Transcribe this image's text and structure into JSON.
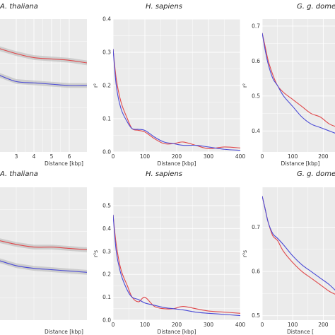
{
  "figure": {
    "panel_background": "#ebebeb",
    "grid_color": "#ffffff",
    "colors": {
      "red": "#e0484b",
      "blue": "#4b4bd6",
      "band": "#b4b4b4"
    }
  },
  "chart_data": [
    {
      "type": "line",
      "title": "A. thaliana",
      "xlabel": "Distance [kbp]",
      "ylabel": "",
      "xlim": [
        2,
        7
      ],
      "ylim": [
        0,
        1
      ],
      "xticks": [
        3,
        4,
        5,
        6
      ],
      "yticks": [],
      "grid": true,
      "series": [
        {
          "color": "red",
          "band": true,
          "x": [
            2,
            3,
            4,
            5,
            6,
            7
          ],
          "y": [
            0.78,
            0.74,
            0.71,
            0.7,
            0.69,
            0.67
          ]
        },
        {
          "color": "blue",
          "band": true,
          "x": [
            2,
            3,
            4,
            5,
            6,
            7
          ],
          "y": [
            0.58,
            0.53,
            0.52,
            0.51,
            0.5,
            0.5
          ]
        }
      ]
    },
    {
      "type": "line",
      "title": "H. sapiens",
      "xlabel": "Distance [kbp]",
      "ylabel": "r²",
      "xlim": [
        0,
        400
      ],
      "ylim": [
        0,
        0.4
      ],
      "xticks": [
        0,
        100,
        200,
        300,
        400
      ],
      "yticks": [
        0.0,
        0.1,
        0.2,
        0.3,
        0.4
      ],
      "grid": true,
      "series": [
        {
          "color": "red",
          "x": [
            0,
            10,
            25,
            45,
            60,
            80,
            100,
            130,
            160,
            190,
            220,
            260,
            300,
            350,
            400
          ],
          "y": [
            0.31,
            0.22,
            0.15,
            0.1,
            0.07,
            0.065,
            0.06,
            0.04,
            0.025,
            0.025,
            0.03,
            0.02,
            0.01,
            0.015,
            0.012
          ]
        },
        {
          "color": "blue",
          "x": [
            0,
            10,
            25,
            45,
            60,
            80,
            100,
            130,
            160,
            190,
            220,
            260,
            300,
            350,
            400
          ],
          "y": [
            0.31,
            0.2,
            0.13,
            0.09,
            0.07,
            0.068,
            0.065,
            0.045,
            0.03,
            0.025,
            0.02,
            0.02,
            0.015,
            0.008,
            0.005
          ]
        }
      ]
    },
    {
      "type": "line",
      "title": "G. g. dome",
      "xlabel": "Distance [kbp]",
      "ylabel": "r²",
      "xlim": [
        0,
        250
      ],
      "ylim": [
        0.34,
        0.72
      ],
      "xticks": [
        0,
        100,
        200
      ],
      "yticks": [
        0.4,
        0.5,
        0.6,
        0.7
      ],
      "grid": true,
      "series": [
        {
          "color": "red",
          "x": [
            0,
            10,
            20,
            35,
            50,
            70,
            100,
            130,
            160,
            190,
            220,
            250
          ],
          "y": [
            0.68,
            0.64,
            0.6,
            0.56,
            0.53,
            0.51,
            0.49,
            0.47,
            0.45,
            0.44,
            0.42,
            0.41
          ]
        },
        {
          "color": "blue",
          "x": [
            0,
            10,
            20,
            35,
            50,
            70,
            100,
            130,
            160,
            190,
            220,
            250
          ],
          "y": [
            0.68,
            0.63,
            0.59,
            0.55,
            0.53,
            0.5,
            0.47,
            0.44,
            0.42,
            0.41,
            0.4,
            0.39
          ]
        }
      ]
    },
    {
      "type": "line",
      "title": "A. thaliana",
      "xlabel": "Distance [kbp]",
      "ylabel": "",
      "xlim": [
        2,
        7
      ],
      "ylim": [
        0,
        1
      ],
      "xticks": [],
      "yticks": [],
      "grid": true,
      "series": [
        {
          "color": "red",
          "band": true,
          "x": [
            2,
            3,
            4,
            5,
            6,
            7
          ],
          "y": [
            0.6,
            0.57,
            0.55,
            0.55,
            0.54,
            0.53
          ]
        },
        {
          "color": "blue",
          "band": true,
          "x": [
            2,
            3,
            4,
            5,
            6,
            7
          ],
          "y": [
            0.45,
            0.41,
            0.39,
            0.38,
            0.37,
            0.36
          ]
        }
      ]
    },
    {
      "type": "line",
      "title": "H. sapiens",
      "xlabel": "Distance [kbp]",
      "ylabel": "r²s",
      "xlim": [
        0,
        400
      ],
      "ylim": [
        0,
        0.58
      ],
      "xticks": [
        0,
        100,
        200,
        300,
        400
      ],
      "yticks": [
        0.0,
        0.1,
        0.2,
        0.3,
        0.4,
        0.5
      ],
      "grid": true,
      "series": [
        {
          "color": "red",
          "x": [
            0,
            10,
            25,
            45,
            60,
            80,
            100,
            130,
            160,
            190,
            220,
            260,
            300,
            350,
            400
          ],
          "y": [
            0.46,
            0.33,
            0.22,
            0.15,
            0.1,
            0.08,
            0.1,
            0.06,
            0.05,
            0.05,
            0.06,
            0.05,
            0.04,
            0.035,
            0.03
          ]
        },
        {
          "color": "blue",
          "x": [
            0,
            10,
            25,
            45,
            60,
            80,
            100,
            130,
            160,
            190,
            220,
            260,
            300,
            350,
            400
          ],
          "y": [
            0.46,
            0.3,
            0.2,
            0.13,
            0.1,
            0.09,
            0.075,
            0.065,
            0.055,
            0.05,
            0.045,
            0.035,
            0.03,
            0.025,
            0.02
          ]
        }
      ]
    },
    {
      "type": "line",
      "title": "G. g. dome",
      "xlabel": "Distance [",
      "ylabel": "r²s",
      "xlim": [
        0,
        250
      ],
      "ylim": [
        0.49,
        0.79
      ],
      "xticks": [
        0,
        100,
        200
      ],
      "yticks": [
        0.5,
        0.6,
        0.7
      ],
      "grid": true,
      "series": [
        {
          "color": "red",
          "x": [
            0,
            10,
            20,
            35,
            50,
            70,
            100,
            130,
            160,
            190,
            220,
            250
          ],
          "y": [
            0.77,
            0.74,
            0.71,
            0.68,
            0.67,
            0.645,
            0.62,
            0.6,
            0.585,
            0.57,
            0.555,
            0.545
          ]
        },
        {
          "color": "blue",
          "x": [
            0,
            10,
            20,
            35,
            50,
            70,
            100,
            130,
            160,
            190,
            220,
            250
          ],
          "y": [
            0.77,
            0.74,
            0.71,
            0.685,
            0.675,
            0.66,
            0.635,
            0.615,
            0.6,
            0.585,
            0.57,
            0.55
          ]
        }
      ]
    }
  ]
}
